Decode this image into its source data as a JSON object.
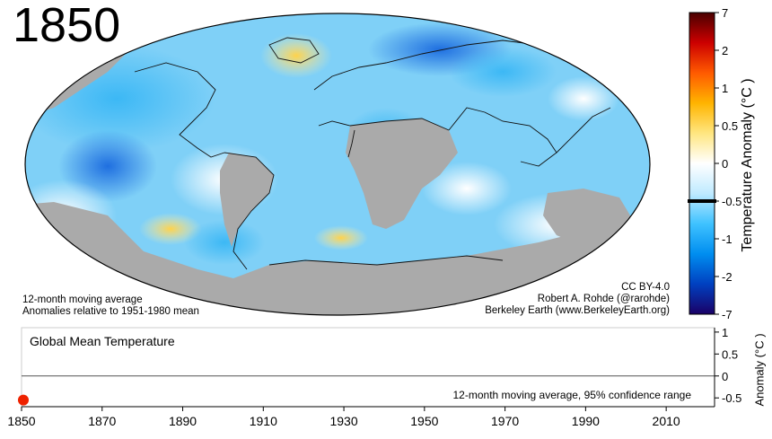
{
  "year_label": "1850",
  "map": {
    "notes_left": [
      "12-month moving average",
      "Anomalies relative to 1951-1980 mean"
    ],
    "notes_right": [
      "CC BY-4.0",
      "Robert A. Rohde (@rarohde)",
      "Berkeley Earth (www.BerkeleyEarth.org)"
    ]
  },
  "colorbar": {
    "title": "Temperature Anomaly (°C )",
    "ticks": [
      "7",
      "2",
      "1",
      "0.5",
      "0",
      "-0.5",
      "-1",
      "-2",
      "-7"
    ],
    "colors": [
      "#4a0000",
      "#cc0000",
      "#ff5a00",
      "#ffb400",
      "#ffe680",
      "#ffffff",
      "#bfeaff",
      "#3fc2ff",
      "#008ef0",
      "#0040c0",
      "#1a0066"
    ],
    "marker_value": -0.5
  },
  "chart_data": {
    "type": "scatter",
    "title": "Global Mean Temperature",
    "ylabel": "Anomaly (°C )",
    "legend": "12-month moving average, 95% confidence range",
    "xlim": [
      1850,
      2022
    ],
    "ylim": [
      -0.7,
      1.1
    ],
    "x_ticks": [
      1850,
      1870,
      1890,
      1910,
      1930,
      1950,
      1970,
      1990,
      2010
    ],
    "y_ticks": [
      1,
      0.5,
      0,
      -0.5
    ],
    "series": [
      {
        "x": [
          1850
        ],
        "y": [
          -0.55
        ],
        "color": "#ee2200"
      }
    ]
  }
}
